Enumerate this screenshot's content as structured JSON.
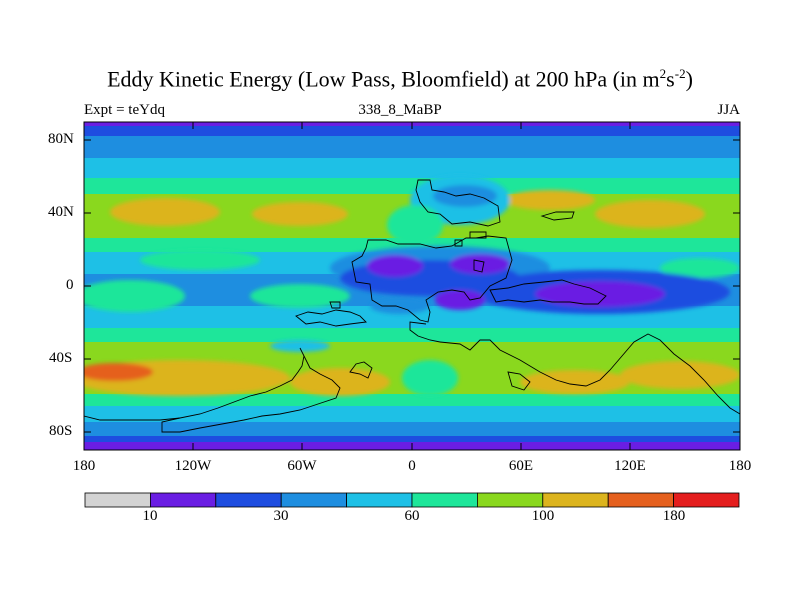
{
  "title": {
    "prefix": "Eddy Kinetic Energy (Low Pass, Bloomfield) at 200 hPa (in m",
    "exp1": "2",
    "mid": "s",
    "exp2": "-2",
    "suffix": ")"
  },
  "left_label": "Expt = teYdq",
  "center_label": "338_8_MaBP",
  "right_label": "JJA",
  "axes": {
    "lat_ticks": [
      "80N",
      "40N",
      "0",
      "40S",
      "80S"
    ],
    "lon_ticks": [
      "180",
      "120W",
      "60W",
      "0",
      "60E",
      "120E",
      "180"
    ]
  },
  "colorbar": {
    "colors": [
      "#d3d3d3",
      "#6a1ee3",
      "#1e4de0",
      "#1e8ee0",
      "#1ec0e6",
      "#1ee69a",
      "#8ad81e",
      "#dcb41e",
      "#e5601e",
      "#e41e1e"
    ],
    "labels": [
      "10",
      "30",
      "60",
      "100",
      "180"
    ]
  }
}
